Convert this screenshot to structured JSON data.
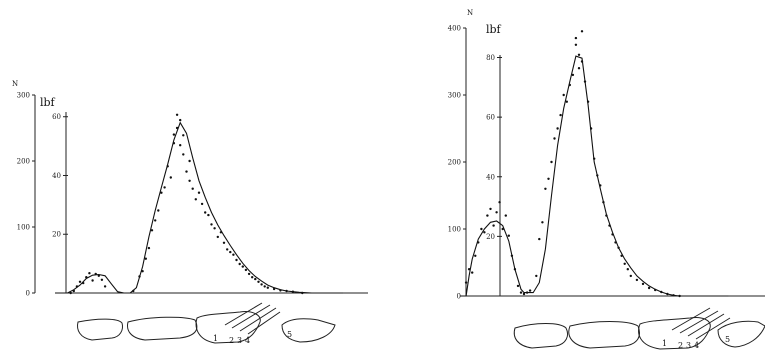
{
  "chart_data": [
    {
      "type": "line",
      "title": "",
      "x_range": [
        0,
        100
      ],
      "axes": {
        "outer": {
          "unit": "N",
          "ylim": [
            0,
            300
          ],
          "ticks": [
            0,
            100,
            200,
            300
          ],
          "tick_labels": [
            "0",
            "100",
            "200",
            "300"
          ]
        },
        "inner": {
          "unit": "lbf",
          "ylim": [
            0,
            67.4
          ],
          "ticks": [
            20,
            40,
            60
          ],
          "tick_labels": [
            "20",
            "40",
            "60"
          ]
        }
      },
      "series": [
        {
          "x": [
            0,
            4,
            6,
            8,
            10,
            12,
            14,
            16,
            18,
            20,
            22,
            24,
            26,
            28,
            30,
            32,
            34,
            36,
            38,
            40,
            42,
            44,
            46,
            48,
            50,
            52,
            54,
            56,
            58,
            60,
            62,
            64,
            66,
            68,
            70,
            72,
            74,
            76,
            78,
            80,
            82,
            84,
            86,
            88,
            90,
            92
          ],
          "y": [
            0,
            0,
            5,
            12,
            22,
            27,
            28,
            26,
            14,
            2,
            0,
            0,
            8,
            40,
            85,
            125,
            160,
            195,
            232,
            258,
            242,
            205,
            170,
            145,
            122,
            103,
            87,
            72,
            58,
            45,
            34,
            25,
            18,
            12,
            8,
            5,
            3,
            2,
            1,
            0.5,
            0,
            0,
            0,
            0,
            0,
            0
          ]
        }
      ],
      "points": {
        "x": [
          5,
          6,
          7,
          8,
          9,
          10,
          11,
          12,
          13,
          14,
          15,
          16,
          25,
          27,
          28,
          29,
          30,
          31,
          32,
          33,
          34,
          35,
          36,
          37,
          38,
          38,
          39,
          39,
          40,
          40,
          41,
          41,
          42,
          43,
          43,
          44,
          45,
          46,
          47,
          48,
          49,
          50,
          51,
          52,
          53,
          54,
          55,
          56,
          57,
          58,
          59,
          60,
          61,
          62,
          63,
          64,
          65,
          66,
          67,
          68,
          70,
          72,
          74,
          76,
          79
        ],
        "y": [
          0,
          3,
          10,
          17,
          15,
          24,
          30,
          19,
          29,
          26,
          20,
          10,
          3,
          25,
          33,
          52,
          68,
          95,
          110,
          125,
          152,
          160,
          192,
          175,
          227,
          240,
          250,
          270,
          262,
          224,
          239,
          210,
          184,
          200,
          170,
          158,
          142,
          152,
          135,
          122,
          118,
          104,
          98,
          85,
          92,
          76,
          66,
          62,
          58,
          50,
          44,
          40,
          35,
          29,
          24,
          21,
          17,
          13,
          10,
          8,
          6,
          4,
          3,
          2,
          0
        ]
      },
      "toe_labels": [
        "1",
        "2",
        "3",
        "4",
        "5"
      ]
    },
    {
      "type": "line",
      "title": "",
      "x_range": [
        0,
        100
      ],
      "axes": {
        "outer": {
          "unit": "N",
          "ylim": [
            0,
            400
          ],
          "ticks": [
            0,
            100,
            200,
            300,
            400
          ],
          "tick_labels": [
            "0",
            "100",
            "200",
            "300",
            "400"
          ]
        },
        "inner": {
          "unit": "lbf",
          "ylim": [
            0,
            89.9
          ],
          "ticks": [
            20,
            40,
            60,
            80
          ],
          "tick_labels": [
            "20",
            "40",
            "60",
            "80"
          ]
        }
      },
      "series": [
        {
          "x": [
            0,
            2,
            3,
            4,
            6,
            8,
            10,
            12,
            14,
            16,
            18,
            20,
            21,
            22,
            24,
            26,
            28,
            30,
            32,
            34,
            36,
            38,
            40,
            42,
            44,
            46,
            48,
            50,
            52,
            54,
            56,
            58,
            60,
            62,
            64,
            66,
            68,
            70,
            72,
            74,
            76,
            78,
            80,
            82,
            84,
            86,
            88
          ],
          "y": [
            0,
            0,
            30,
            55,
            85,
            100,
            110,
            112,
            105,
            82,
            40,
            10,
            5,
            5,
            5,
            20,
            70,
            150,
            225,
            280,
            320,
            358,
            355,
            285,
            200,
            160,
            122,
            95,
            72,
            55,
            42,
            30,
            22,
            15,
            10,
            6,
            3,
            1,
            0,
            0,
            0,
            0,
            0,
            0,
            0,
            0,
            0
          ]
        }
      ],
      "points": {
        "x": [
          2,
          3,
          4,
          5,
          6,
          7,
          8,
          9,
          10,
          11,
          12,
          13,
          14,
          15,
          16,
          17,
          18,
          19,
          20,
          21,
          22,
          23,
          25,
          26,
          27,
          28,
          29,
          30,
          31,
          32,
          33,
          34,
          35,
          36,
          37,
          38,
          38,
          39,
          39,
          40,
          40,
          41,
          42,
          43,
          44,
          45,
          46,
          47,
          48,
          49,
          50,
          51,
          52,
          53,
          54,
          55,
          56,
          58,
          60,
          62,
          64,
          66,
          68,
          70,
          72
        ],
        "y": [
          20,
          40,
          35,
          60,
          80,
          100,
          95,
          120,
          130,
          105,
          125,
          140,
          100,
          120,
          90,
          60,
          40,
          15,
          5,
          3,
          5,
          8,
          30,
          85,
          110,
          160,
          175,
          200,
          235,
          250,
          270,
          300,
          290,
          315,
          330,
          385,
          375,
          340,
          360,
          395,
          350,
          320,
          290,
          250,
          205,
          180,
          165,
          140,
          120,
          105,
          92,
          80,
          72,
          60,
          48,
          40,
          30,
          24,
          18,
          12,
          9,
          6,
          3,
          1,
          0
        ]
      },
      "toe_labels": [
        "1",
        "2",
        "3",
        "4",
        "5"
      ]
    }
  ]
}
